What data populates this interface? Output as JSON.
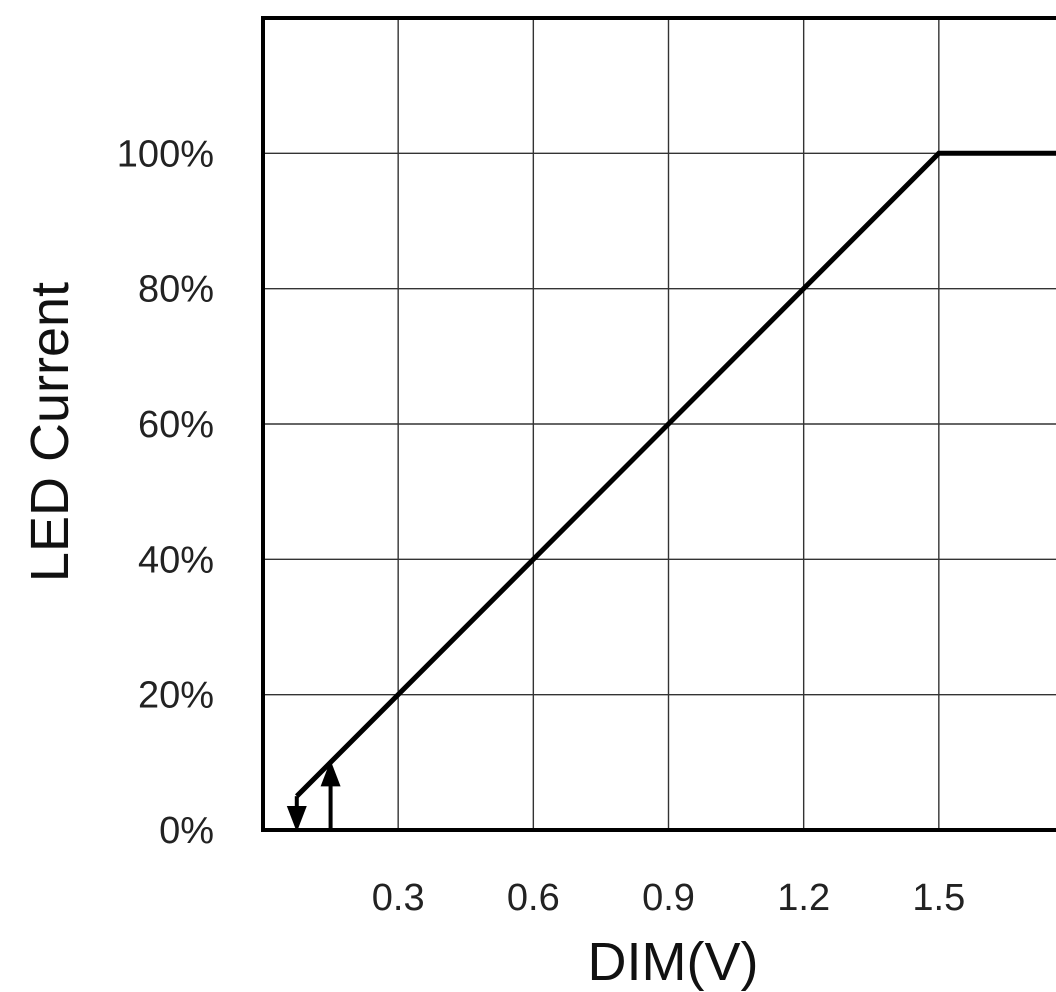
{
  "chart_data": {
    "type": "line",
    "title": "",
    "xlabel": "DIM(V)",
    "ylabel": "LED Current",
    "xlim": [
      0,
      1.8
    ],
    "ylim": [
      0,
      120
    ],
    "grid": true,
    "x_ticks": [
      {
        "value": 0.3,
        "label": "0.3"
      },
      {
        "value": 0.6,
        "label": "0.6"
      },
      {
        "value": 0.9,
        "label": "0.9"
      },
      {
        "value": 1.2,
        "label": "1.2"
      },
      {
        "value": 1.5,
        "label": "1.5"
      }
    ],
    "y_ticks": [
      {
        "value": 0,
        "label": "0%"
      },
      {
        "value": 20,
        "label": "20%"
      },
      {
        "value": 40,
        "label": "40%"
      },
      {
        "value": 60,
        "label": "60%"
      },
      {
        "value": 80,
        "label": "80%"
      },
      {
        "value": 100,
        "label": "100%"
      }
    ],
    "series": [
      {
        "values": [
          {
            "x": 0.075,
            "y": 5
          },
          {
            "x": 0.15,
            "y": 10
          },
          {
            "x": 1.5,
            "y": 100
          },
          {
            "x": 1.8,
            "y": 100
          }
        ]
      }
    ],
    "annotations": [
      {
        "type": "arrow-down",
        "x": 0.075,
        "from": 5,
        "to": 0
      },
      {
        "type": "arrow-up",
        "x": 0.15,
        "from": 0,
        "to": 10
      }
    ]
  }
}
